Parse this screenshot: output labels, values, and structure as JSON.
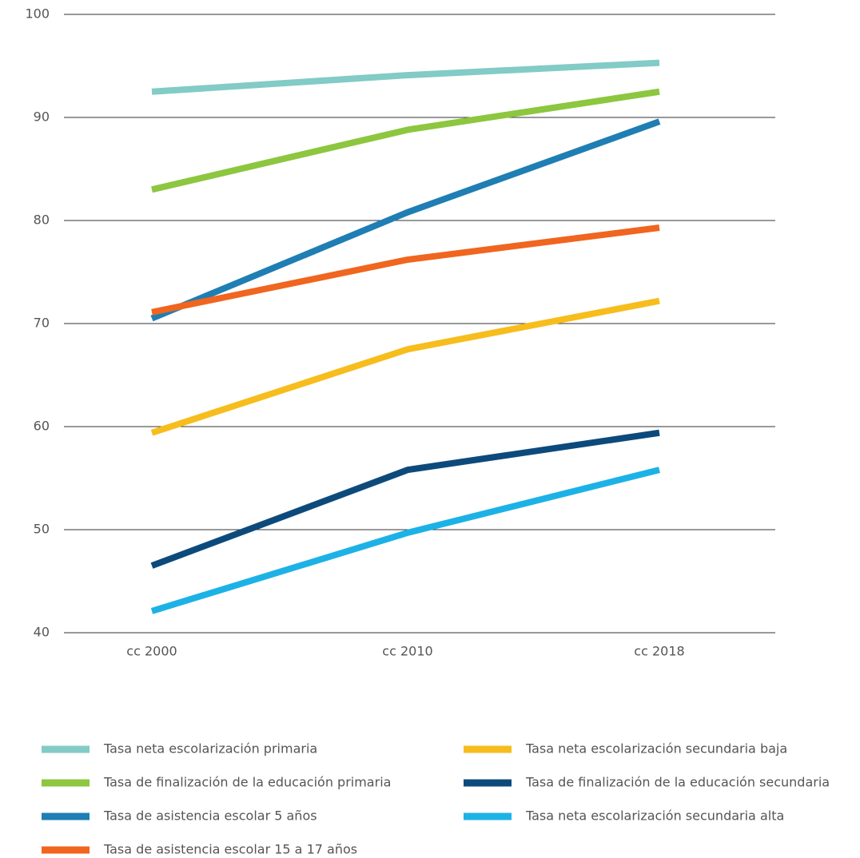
{
  "chart_data": {
    "type": "line",
    "categories": [
      "cc 2000",
      "cc 2010",
      "cc 2018"
    ],
    "series": [
      {
        "name": "Tasa neta escolarización primaria",
        "color": "#82cbc6",
        "values": [
          92.5,
          94.1,
          95.3
        ]
      },
      {
        "name": "Tasa de finalización de la educación primaria",
        "color": "#8dc63f",
        "values": [
          83.0,
          88.8,
          92.5
        ]
      },
      {
        "name": "Tasa de asistencia escolar 5 años",
        "color": "#1f7eb3",
        "values": [
          70.5,
          80.8,
          89.6
        ]
      },
      {
        "name": "Tasa de asistencia escolar 15 a 17 años",
        "color": "#f0651f",
        "values": [
          71.1,
          76.2,
          79.3
        ]
      },
      {
        "name": "Tasa neta escolarización secundaria baja",
        "color": "#f6bd1d",
        "values": [
          59.4,
          67.5,
          72.2
        ]
      },
      {
        "name": "Tasa de finalización de la educación secundaria",
        "color": "#0d4a7c",
        "values": [
          46.5,
          55.8,
          59.4
        ]
      },
      {
        "name": "Tasa neta escolarización secundaria alta",
        "color": "#1db2e6",
        "values": [
          42.1,
          49.7,
          55.8
        ]
      }
    ],
    "ylim": [
      40,
      100
    ],
    "yticks": [
      40,
      50,
      60,
      70,
      80,
      90,
      100
    ],
    "grid": true
  }
}
